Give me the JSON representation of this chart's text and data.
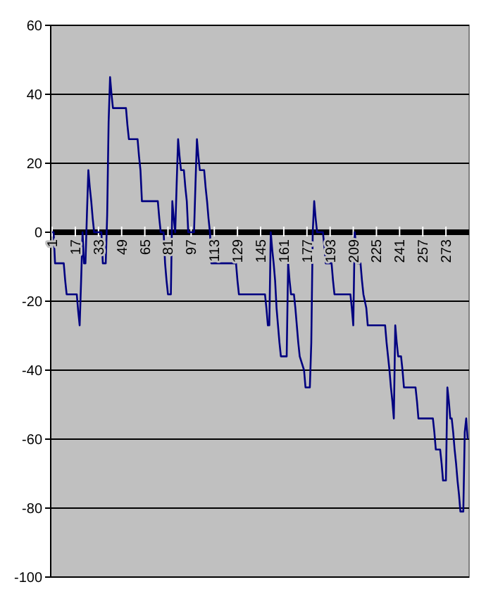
{
  "chart_data": {
    "type": "line",
    "color": "#000080",
    "grid": "y",
    "marker": "none",
    "line_style": "solid",
    "xlim": [
      0,
      289
    ],
    "xticks": [
      1,
      17,
      33,
      49,
      65,
      81,
      97,
      113,
      129,
      145,
      161,
      177,
      193,
      209,
      225,
      241,
      257,
      273
    ],
    "ylim": [
      -100,
      60
    ],
    "yticks": [
      -100,
      -80,
      -60,
      -40,
      -20,
      0,
      20,
      40,
      60
    ],
    "x": [
      1,
      2,
      3,
      9,
      10,
      11,
      18,
      19,
      20,
      21,
      22,
      23,
      24,
      25,
      26,
      27,
      28,
      29,
      30,
      35,
      36,
      38,
      39,
      40,
      41,
      42,
      43,
      52,
      53,
      54,
      60,
      61,
      62,
      63,
      74,
      75,
      76,
      78,
      79,
      80,
      81,
      83,
      84,
      85,
      86,
      87,
      88,
      89,
      90,
      92,
      93,
      94,
      95,
      99,
      100,
      101,
      102,
      103,
      106,
      107,
      108,
      109,
      110,
      111,
      128,
      129,
      130,
      148,
      149,
      150,
      151,
      152,
      153,
      154,
      155,
      156,
      157,
      158,
      159,
      163,
      164,
      165,
      166,
      168,
      169,
      170,
      171,
      172,
      175,
      176,
      179,
      180,
      181,
      182,
      183,
      184,
      188,
      189,
      190,
      194,
      195,
      196,
      207,
      208,
      209,
      210,
      211,
      212,
      214,
      215,
      216,
      218,
      219,
      231,
      232,
      233,
      234,
      235,
      236,
      237,
      238,
      239,
      240,
      242,
      243,
      244,
      252,
      253,
      254,
      264,
      265,
      266,
      269,
      270,
      271,
      273,
      274,
      275,
      276,
      277,
      278,
      279,
      280,
      281,
      282,
      283,
      285,
      286,
      287,
      288
    ],
    "values": [
      0,
      0,
      -9,
      -9,
      -14,
      -18,
      -18,
      -23,
      -27,
      -14,
      0,
      -9,
      -9,
      5,
      18,
      13,
      9,
      4,
      0,
      0,
      -9,
      -9,
      5,
      32,
      45,
      40,
      36,
      36,
      31,
      27,
      27,
      22,
      18,
      9,
      9,
      4,
      0,
      0,
      -9,
      -14,
      -18,
      -18,
      9,
      4,
      0,
      14,
      27,
      22,
      18,
      18,
      13,
      9,
      0,
      0,
      14,
      27,
      22,
      18,
      18,
      13,
      9,
      4,
      0,
      -9,
      -9,
      -14,
      -18,
      -18,
      -22,
      -27,
      -27,
      0,
      -5,
      -9,
      -14,
      -22,
      -27,
      -32,
      -36,
      -36,
      -9,
      -14,
      -18,
      -18,
      -22,
      -27,
      -32,
      -36,
      -40,
      -45,
      -45,
      -32,
      0,
      9,
      4,
      0,
      0,
      -4,
      -9,
      -9,
      -14,
      -18,
      -18,
      -22,
      -27,
      0,
      -4,
      -9,
      -9,
      -14,
      -18,
      -22,
      -27,
      -27,
      -32,
      -36,
      -40,
      -45,
      -49,
      -54,
      -27,
      -32,
      -36,
      -36,
      -40,
      -45,
      -45,
      -49,
      -54,
      -54,
      -58,
      -63,
      -63,
      -67,
      -72,
      -72,
      -45,
      -49,
      -54,
      -54,
      -58,
      -63,
      -67,
      -72,
      -76,
      -81,
      -81,
      -58,
      -54,
      -60
    ]
  }
}
